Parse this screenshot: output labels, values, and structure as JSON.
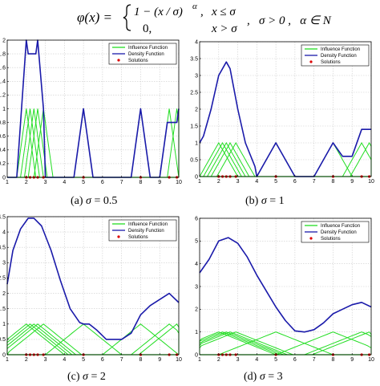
{
  "formula": {
    "lhs": "φ(x) =",
    "case1_expr": "1 − (x / σ)",
    "case1_exp": "α",
    "case1_comma": ",",
    "case1_cond": "x ≤ σ",
    "case2_expr": "0,",
    "case2_cond": "x > σ",
    "params": ",   σ > 0 ,   α ∈ N"
  },
  "colors": {
    "influence": "#22dd22",
    "density": "#1a1aaa",
    "solutions": "#dd0000",
    "grid": "#cccccc"
  },
  "legend": [
    "Influence Function",
    "Density Function",
    "Solutions"
  ],
  "chart_data": [
    {
      "type": "line",
      "caption": "(a) σ = 0.5",
      "caption_parts": {
        "label": "(a)",
        "sym": "σ",
        "eq": "= 0.5"
      },
      "sigma": 0.5,
      "xlim": [
        1,
        10
      ],
      "ylim": [
        0,
        2
      ],
      "xticks": [
        1,
        2,
        3,
        4,
        5,
        6,
        7,
        8,
        9,
        10
      ],
      "yticks": [
        0,
        0.2,
        0.4,
        0.6,
        0.8,
        1,
        1.2,
        1.4,
        1.6,
        1.8,
        2
      ],
      "ytick_labels": [
        "0",
        "0.2",
        "0.4",
        "0.6",
        "0.8",
        "1",
        "1.2",
        "1.4",
        "1.6",
        "1.8",
        "2"
      ],
      "solutions": [
        2.0,
        2.2,
        2.4,
        2.6,
        2.9,
        5.0,
        8.0,
        9.5,
        9.9
      ],
      "density": {
        "x": [
          1,
          1.4,
          1.5,
          2.0,
          2.1,
          2.5,
          2.6,
          2.9,
          3.0,
          3.4,
          4.5,
          5.0,
          5.5,
          7.5,
          8.0,
          8.5,
          9.0,
          9.4,
          9.5,
          9.9,
          10.0
        ],
        "y": [
          0,
          0,
          0,
          2.0,
          1.8,
          1.8,
          2.0,
          1.0,
          0,
          0,
          0,
          1.0,
          0,
          0,
          1.0,
          0,
          0,
          0.8,
          0.8,
          0.8,
          1.0
        ]
      },
      "legend_position": "top-right"
    },
    {
      "type": "line",
      "caption": "(b) σ = 1",
      "caption_parts": {
        "label": "(b)",
        "sym": "σ",
        "eq": "= 1"
      },
      "sigma": 1,
      "xlim": [
        1,
        10
      ],
      "ylim": [
        0,
        4
      ],
      "xticks": [
        1,
        2,
        3,
        4,
        5,
        6,
        7,
        8,
        9,
        10
      ],
      "yticks": [
        0,
        0.5,
        1,
        1.5,
        2,
        2.5,
        3,
        3.5,
        4
      ],
      "ytick_labels": [
        "0",
        "0.5",
        "1",
        "1.5",
        "2",
        "2.5",
        "3",
        "3.5",
        "4"
      ],
      "solutions": [
        2.0,
        2.2,
        2.4,
        2.6,
        2.9,
        5.0,
        8.0,
        9.5,
        9.9
      ],
      "density": {
        "x": [
          1,
          1.2,
          1.6,
          2.0,
          2.4,
          2.6,
          3.0,
          3.4,
          3.9,
          4.0,
          5.0,
          6.0,
          7.0,
          8.0,
          8.5,
          9.0,
          9.5,
          9.9,
          10.0
        ],
        "y": [
          1.0,
          1.2,
          2.0,
          3.0,
          3.4,
          3.2,
          2.0,
          1.0,
          0.3,
          0,
          1.0,
          0,
          0,
          1.0,
          0.6,
          0.6,
          1.4,
          1.4,
          1.4
        ]
      },
      "legend_position": "top-right"
    },
    {
      "type": "line",
      "caption": "(c) σ = 2",
      "caption_parts": {
        "label": "(c)",
        "sym": "σ",
        "eq": "= 2"
      },
      "sigma": 2,
      "xlim": [
        1,
        10
      ],
      "ylim": [
        0,
        4.5
      ],
      "xticks": [
        1,
        2,
        3,
        4,
        5,
        6,
        7,
        8,
        9,
        10
      ],
      "yticks": [
        0,
        0.5,
        1,
        1.5,
        2,
        2.5,
        3,
        3.5,
        4,
        4.5
      ],
      "ytick_labels": [
        "0",
        "0.5",
        "1",
        "1.5",
        "2",
        "2.5",
        "3",
        "3.5",
        "4",
        "4.5"
      ],
      "solutions": [
        2.0,
        2.2,
        2.4,
        2.6,
        2.9,
        5.0,
        8.0,
        9.5,
        9.9
      ],
      "density": {
        "x": [
          1,
          1.3,
          1.7,
          2.1,
          2.4,
          2.8,
          3.3,
          3.8,
          4.3,
          4.8,
          5.0,
          5.3,
          5.7,
          6.2,
          7.0,
          7.5,
          8.0,
          8.5,
          9.0,
          9.5,
          10.0
        ],
        "y": [
          2.3,
          3.4,
          4.1,
          4.45,
          4.45,
          4.2,
          3.4,
          2.4,
          1.5,
          1.05,
          1.0,
          1.0,
          0.8,
          0.5,
          0.5,
          0.7,
          1.3,
          1.6,
          1.8,
          2.0,
          1.7
        ]
      },
      "legend_position": "top-right"
    },
    {
      "type": "line",
      "caption": "(d) σ = 3",
      "caption_parts": {
        "label": "(d)",
        "sym": "σ",
        "eq": "= 3"
      },
      "sigma": 3,
      "xlim": [
        1,
        10
      ],
      "ylim": [
        0,
        6
      ],
      "xticks": [
        1,
        2,
        3,
        4,
        5,
        6,
        7,
        8,
        9,
        10
      ],
      "yticks": [
        0,
        1,
        2,
        3,
        4,
        5,
        6
      ],
      "ytick_labels": [
        "0",
        "1",
        "2",
        "3",
        "4",
        "5",
        "6"
      ],
      "solutions": [
        2.0,
        2.2,
        2.4,
        2.6,
        2.9,
        5.0,
        8.0,
        9.5,
        9.9
      ],
      "density": {
        "x": [
          1,
          1.5,
          2.0,
          2.5,
          3.0,
          3.5,
          4.0,
          4.5,
          5.0,
          5.5,
          6.0,
          6.5,
          7.0,
          7.5,
          8.0,
          8.5,
          9.0,
          9.5,
          10.0
        ],
        "y": [
          3.6,
          4.2,
          5.0,
          5.15,
          4.9,
          4.3,
          3.5,
          2.8,
          2.1,
          1.5,
          1.05,
          1.0,
          1.1,
          1.4,
          1.8,
          2.0,
          2.2,
          2.3,
          2.1
        ]
      },
      "legend_position": "top-right"
    }
  ]
}
